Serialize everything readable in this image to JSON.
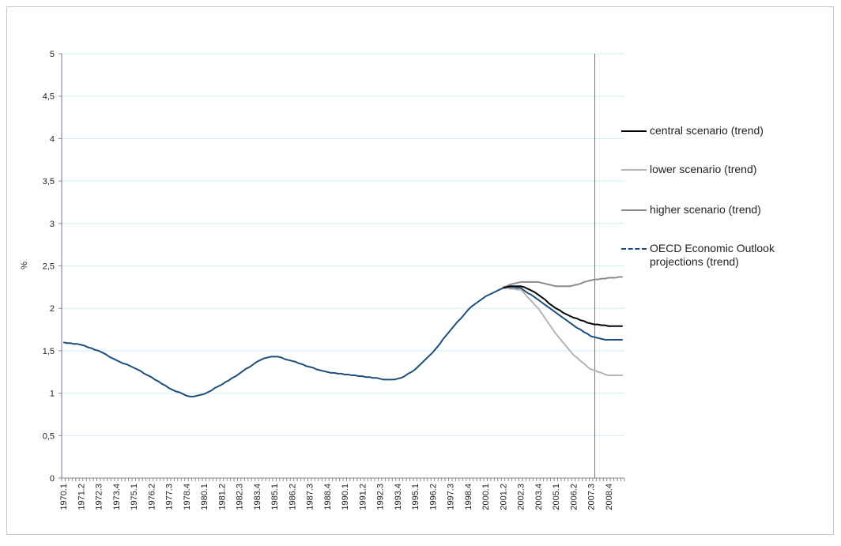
{
  "chart_data": {
    "type": "line",
    "y_label": "%",
    "categories": [
      "1970.1",
      null,
      null,
      null,
      null,
      "1971.2",
      null,
      null,
      null,
      null,
      "1972.3",
      null,
      null,
      null,
      null,
      "1973.4",
      null,
      null,
      null,
      null,
      "1975.1",
      null,
      null,
      null,
      null,
      "1976.2",
      null,
      null,
      null,
      null,
      "1977.3",
      null,
      null,
      null,
      null,
      "1978.4",
      null,
      null,
      null,
      null,
      "1980.1",
      null,
      null,
      null,
      null,
      "1981.2",
      null,
      null,
      null,
      null,
      "1982.3",
      null,
      null,
      null,
      null,
      "1983.4",
      null,
      null,
      null,
      null,
      "1985.1",
      null,
      null,
      null,
      null,
      "1986.2",
      null,
      null,
      null,
      null,
      "1987.3",
      null,
      null,
      null,
      null,
      "1988.4",
      null,
      null,
      null,
      null,
      "1990.1",
      null,
      null,
      null,
      null,
      "1991.2",
      null,
      null,
      null,
      null,
      "1992.3",
      null,
      null,
      null,
      null,
      "1993.4",
      null,
      null,
      null,
      null,
      "1995.1",
      null,
      null,
      null,
      null,
      "1996.2",
      null,
      null,
      null,
      null,
      "1997.3",
      null,
      null,
      null,
      null,
      "1998.4",
      null,
      null,
      null,
      null,
      "2000.1",
      null,
      null,
      null,
      null,
      "2001.2",
      null,
      null,
      null,
      null,
      "2002.3",
      null,
      null,
      null,
      null,
      "2003.4",
      null,
      null,
      null,
      null,
      "2005.1",
      null,
      null,
      null,
      null,
      "2006.2",
      null,
      null,
      null,
      null,
      "2007.3",
      null,
      null,
      null,
      null,
      "2008.4",
      null,
      null,
      null,
      null
    ],
    "series": [
      {
        "name": "central scenario (trend)",
        "color": "#000000",
        "values": [
          null,
          null,
          null,
          null,
          null,
          null,
          null,
          null,
          null,
          null,
          null,
          null,
          null,
          null,
          null,
          null,
          null,
          null,
          null,
          null,
          null,
          null,
          null,
          null,
          null,
          null,
          null,
          null,
          null,
          null,
          null,
          null,
          null,
          null,
          null,
          null,
          null,
          null,
          null,
          null,
          null,
          null,
          null,
          null,
          null,
          null,
          null,
          null,
          null,
          null,
          null,
          null,
          null,
          null,
          null,
          null,
          null,
          null,
          null,
          null,
          null,
          null,
          null,
          null,
          null,
          null,
          null,
          null,
          null,
          null,
          null,
          null,
          null,
          null,
          null,
          null,
          null,
          null,
          null,
          null,
          null,
          null,
          null,
          null,
          null,
          null,
          null,
          null,
          null,
          null,
          null,
          null,
          null,
          null,
          null,
          null,
          null,
          null,
          null,
          null,
          null,
          null,
          null,
          null,
          null,
          null,
          null,
          null,
          null,
          null,
          null,
          null,
          null,
          null,
          null,
          null,
          null,
          null,
          null,
          null,
          null,
          null,
          null,
          null,
          null,
          2.24,
          2.25,
          2.26,
          2.26,
          2.26,
          2.26,
          2.25,
          2.23,
          2.21,
          2.19,
          2.16,
          2.13,
          2.1,
          2.06,
          2.03,
          2.0,
          1.98,
          1.95,
          1.93,
          1.91,
          1.89,
          1.88,
          1.86,
          1.85,
          1.83,
          1.82,
          1.81,
          1.81,
          1.8,
          1.8,
          1.79,
          1.79,
          1.79,
          1.79,
          1.79
        ]
      },
      {
        "name": "lower scenario (trend)",
        "color": "#b4b4b4",
        "values": [
          null,
          null,
          null,
          null,
          null,
          null,
          null,
          null,
          null,
          null,
          null,
          null,
          null,
          null,
          null,
          null,
          null,
          null,
          null,
          null,
          null,
          null,
          null,
          null,
          null,
          null,
          null,
          null,
          null,
          null,
          null,
          null,
          null,
          null,
          null,
          null,
          null,
          null,
          null,
          null,
          null,
          null,
          null,
          null,
          null,
          null,
          null,
          null,
          null,
          null,
          null,
          null,
          null,
          null,
          null,
          null,
          null,
          null,
          null,
          null,
          null,
          null,
          null,
          null,
          null,
          null,
          null,
          null,
          null,
          null,
          null,
          null,
          null,
          null,
          null,
          null,
          null,
          null,
          null,
          null,
          null,
          null,
          null,
          null,
          null,
          null,
          null,
          null,
          null,
          null,
          null,
          null,
          null,
          null,
          null,
          null,
          null,
          null,
          null,
          null,
          null,
          null,
          null,
          null,
          null,
          null,
          null,
          null,
          null,
          null,
          null,
          null,
          null,
          null,
          null,
          null,
          null,
          null,
          null,
          null,
          null,
          null,
          null,
          null,
          null,
          2.24,
          2.24,
          2.23,
          2.23,
          2.22,
          2.22,
          2.18,
          2.13,
          2.09,
          2.04,
          2.0,
          1.94,
          1.88,
          1.82,
          1.76,
          1.7,
          1.65,
          1.6,
          1.55,
          1.5,
          1.45,
          1.42,
          1.38,
          1.35,
          1.31,
          1.28,
          1.27,
          1.25,
          1.24,
          1.22,
          1.21,
          1.21,
          1.21,
          1.21,
          1.21
        ]
      },
      {
        "name": "higher scenario (trend)",
        "color": "#8c8c8c",
        "values": [
          null,
          null,
          null,
          null,
          null,
          null,
          null,
          null,
          null,
          null,
          null,
          null,
          null,
          null,
          null,
          null,
          null,
          null,
          null,
          null,
          null,
          null,
          null,
          null,
          null,
          null,
          null,
          null,
          null,
          null,
          null,
          null,
          null,
          null,
          null,
          null,
          null,
          null,
          null,
          null,
          null,
          null,
          null,
          null,
          null,
          null,
          null,
          null,
          null,
          null,
          null,
          null,
          null,
          null,
          null,
          null,
          null,
          null,
          null,
          null,
          null,
          null,
          null,
          null,
          null,
          null,
          null,
          null,
          null,
          null,
          null,
          null,
          null,
          null,
          null,
          null,
          null,
          null,
          null,
          null,
          null,
          null,
          null,
          null,
          null,
          null,
          null,
          null,
          null,
          null,
          null,
          null,
          null,
          null,
          null,
          null,
          null,
          null,
          null,
          null,
          null,
          null,
          null,
          null,
          null,
          null,
          null,
          null,
          null,
          null,
          null,
          null,
          null,
          null,
          null,
          null,
          null,
          null,
          null,
          null,
          null,
          null,
          null,
          null,
          null,
          2.25,
          2.26,
          2.28,
          2.29,
          2.3,
          2.31,
          2.31,
          2.31,
          2.31,
          2.31,
          2.31,
          2.3,
          2.29,
          2.28,
          2.27,
          2.26,
          2.26,
          2.26,
          2.26,
          2.26,
          2.27,
          2.28,
          2.29,
          2.31,
          2.32,
          2.33,
          2.34,
          2.34,
          2.35,
          2.35,
          2.36,
          2.36,
          2.36,
          2.37,
          2.37
        ]
      },
      {
        "name": "OECD Economic Outlook projections (trend)",
        "color": "#1f4e79",
        "values": [
          1.6,
          1.59,
          1.59,
          1.58,
          1.58,
          1.57,
          1.56,
          1.54,
          1.53,
          1.51,
          1.5,
          1.48,
          1.46,
          1.43,
          1.41,
          1.39,
          1.37,
          1.35,
          1.34,
          1.32,
          1.3,
          1.28,
          1.26,
          1.23,
          1.21,
          1.19,
          1.16,
          1.14,
          1.11,
          1.09,
          1.06,
          1.04,
          1.02,
          1.01,
          0.99,
          0.97,
          0.96,
          0.96,
          0.97,
          0.98,
          0.99,
          1.01,
          1.03,
          1.06,
          1.08,
          1.1,
          1.13,
          1.15,
          1.18,
          1.2,
          1.23,
          1.26,
          1.29,
          1.31,
          1.34,
          1.37,
          1.39,
          1.41,
          1.42,
          1.43,
          1.43,
          1.43,
          1.42,
          1.4,
          1.39,
          1.38,
          1.37,
          1.35,
          1.34,
          1.32,
          1.31,
          1.3,
          1.28,
          1.27,
          1.26,
          1.25,
          1.24,
          1.24,
          1.23,
          1.23,
          1.22,
          1.22,
          1.21,
          1.21,
          1.2,
          1.2,
          1.19,
          1.19,
          1.18,
          1.18,
          1.17,
          1.16,
          1.16,
          1.16,
          1.16,
          1.17,
          1.18,
          1.2,
          1.23,
          1.25,
          1.28,
          1.32,
          1.36,
          1.4,
          1.44,
          1.48,
          1.53,
          1.58,
          1.64,
          1.69,
          1.74,
          1.79,
          1.84,
          1.88,
          1.93,
          1.98,
          2.02,
          2.05,
          2.08,
          2.11,
          2.14,
          2.16,
          2.18,
          2.2,
          2.22,
          2.24,
          2.24,
          2.24,
          2.24,
          2.24,
          2.24,
          2.21,
          2.18,
          2.16,
          2.13,
          2.1,
          2.07,
          2.04,
          2.01,
          1.98,
          1.95,
          1.92,
          1.89,
          1.86,
          1.83,
          1.8,
          1.77,
          1.75,
          1.72,
          1.7,
          1.67,
          1.66,
          1.65,
          1.64,
          1.63,
          1.63,
          1.63,
          1.63,
          1.63,
          1.63
        ]
      }
    ],
    "ylim": [
      0,
      5
    ],
    "yticks": [
      0,
      {
        "value": 0.5,
        "label": "0,5"
      },
      1,
      {
        "value": 1.5,
        "label": "1,5"
      },
      2,
      {
        "value": 2.5,
        "label": "2,5"
      },
      3,
      {
        "value": 3.5,
        "label": "3,5"
      },
      4,
      {
        "value": 4.5,
        "label": "4,5"
      },
      5
    ],
    "grid": true
  }
}
